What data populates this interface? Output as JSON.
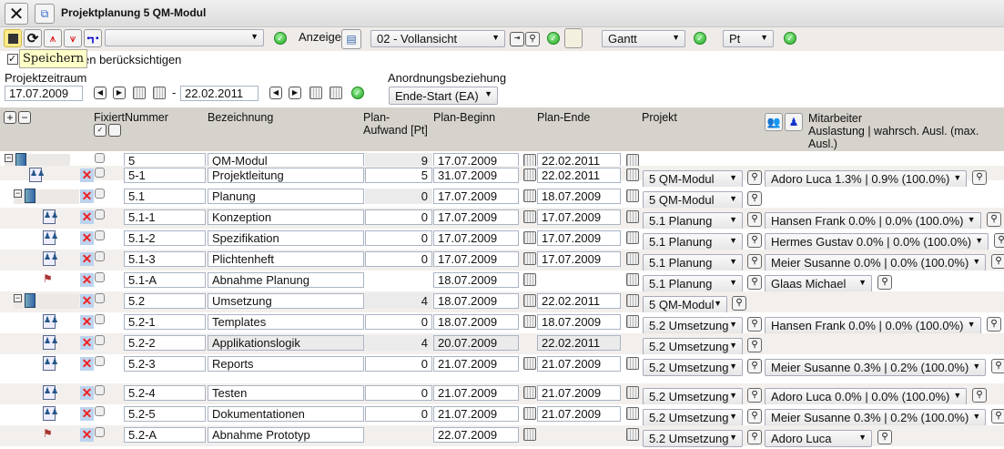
{
  "window": {
    "title": "Projektplanung 5 QM-Modul"
  },
  "toolbar": {
    "filter_select": "",
    "anzeige_label": "Anzeige",
    "view_select": "02 - Vollansicht",
    "chart_select": "Gantt",
    "unit_select": "Pt",
    "tooltip": "Speichern"
  },
  "options": {
    "checkbox_label": "en berücksichtigen",
    "checked": true
  },
  "period": {
    "label": "Projektzeitraum",
    "start": "17.07.2009",
    "separator": "-",
    "end": "22.02.2011"
  },
  "relation": {
    "label": "Anordnungsbeziehung",
    "value": "Ende-Start (EA)"
  },
  "columns": {
    "fixiert": "Fixiert",
    "nummer": "Nummer",
    "bezeichnung": "Bezeichnung",
    "aufwand1": "Plan-",
    "aufwand2": "Aufwand [Pt]",
    "beginn": "Plan-Beginn",
    "ende": "Plan-Ende",
    "projekt": "Projekt",
    "mitarbeiter1": "Mitarbeiter",
    "mitarbeiter2": "Auslastung | wahrsch. Ausl. (max.",
    "mitarbeiter3": "Ausl.)"
  },
  "rows": [
    {
      "type": "project",
      "level": 0,
      "nummer": "5",
      "bez": "QM-Modul",
      "aufwand": "9",
      "beginn": "17.07.2009",
      "ende": "22.02.2011",
      "projekt": "",
      "mitarbeiter": ""
    },
    {
      "type": "task",
      "level": 1,
      "nummer": "5-1",
      "bez": "Projektleitung",
      "aufwand": "5",
      "beginn": "31.07.2009",
      "ende": "22.02.2011",
      "projekt": "5 QM-Modul",
      "mitarbeiter": "Adoro Luca 1.3% | 0.9% (100.0%)"
    },
    {
      "type": "summary",
      "level": 1,
      "nummer": "5.1",
      "bez": "Planung",
      "aufwand": "0",
      "beginn": "17.07.2009",
      "ende": "18.07.2009",
      "projekt": "5 QM-Modul",
      "mitarbeiter": ""
    },
    {
      "type": "task",
      "level": 2,
      "nummer": "5.1-1",
      "bez": "Konzeption",
      "aufwand": "0",
      "beginn": "17.07.2009",
      "ende": "17.07.2009",
      "projekt": "5.1 Planung",
      "mitarbeiter": "Hansen Frank 0.0% | 0.0% (100.0%)"
    },
    {
      "type": "task",
      "level": 2,
      "nummer": "5.1-2",
      "bez": "Spezifikation",
      "aufwand": "0",
      "beginn": "17.07.2009",
      "ende": "17.07.2009",
      "projekt": "5.1 Planung",
      "mitarbeiter": "Hermes Gustav 0.0% | 0.0% (100.0%)"
    },
    {
      "type": "task",
      "level": 2,
      "nummer": "5.1-3",
      "bez": "Plichtenheft",
      "aufwand": "0",
      "beginn": "17.07.2009",
      "ende": "17.07.2009",
      "projekt": "5.1 Planung",
      "mitarbeiter": "Meier Susanne 0.0% | 0.0% (100.0%)"
    },
    {
      "type": "milestone",
      "level": 2,
      "nummer": "5.1-A",
      "bez": "Abnahme Planung",
      "aufwand": "",
      "beginn": "18.07.2009",
      "ende": "",
      "projekt": "5.1 Planung",
      "mitarbeiter": "Glaas Michael"
    },
    {
      "type": "summary",
      "level": 1,
      "nummer": "5.2",
      "bez": "Umsetzung",
      "aufwand": "4",
      "beginn": "18.07.2009",
      "ende": "22.02.2011",
      "projekt": "5 QM-Modul",
      "mitarbeiter": ""
    },
    {
      "type": "task",
      "level": 2,
      "nummer": "5.2-1",
      "bez": "Templates",
      "aufwand": "0",
      "beginn": "18.07.2009",
      "ende": "18.07.2009",
      "projekt": "5.2 Umsetzung",
      "mitarbeiter": "Hansen Frank 0.0% | 0.0% (100.0%)"
    },
    {
      "type": "task",
      "level": 2,
      "locked": true,
      "nummer": "5.2-2",
      "bez": "Applikationslogik",
      "aufwand": "4",
      "beginn": "20.07.2009",
      "ende": "22.02.2011",
      "projekt": "5.2 Umsetzung",
      "mitarbeiter": ""
    },
    {
      "type": "task",
      "level": 2,
      "nummer": "5.2-3",
      "bez": "Reports",
      "aufwand": "0",
      "beginn": "21.07.2009",
      "ende": "21.07.2009",
      "projekt": "5.2 Umsetzung",
      "mitarbeiter": "Meier Susanne 0.3% | 0.2% (100.0%)"
    },
    {
      "type": "task",
      "level": 2,
      "nummer": "5.2-4",
      "bez": "Testen",
      "aufwand": "0",
      "beginn": "21.07.2009",
      "ende": "21.07.2009",
      "projekt": "5.2 Umsetzung",
      "mitarbeiter": "Adoro Luca 0.0% | 0.0% (100.0%)"
    },
    {
      "type": "task",
      "level": 2,
      "nummer": "5.2-5",
      "bez": "Dokumentationen",
      "aufwand": "0",
      "beginn": "21.07.2009",
      "ende": "21.07.2009",
      "projekt": "5.2 Umsetzung",
      "mitarbeiter": "Meier Susanne 0.3% | 0.2% (100.0%)"
    },
    {
      "type": "milestone",
      "level": 2,
      "nummer": "5.2-A",
      "bez": "Abnahme Prototyp",
      "aufwand": "",
      "beginn": "22.07.2009",
      "ende": "",
      "projekt": "5.2 Umsetzung",
      "mitarbeiter": "Adoro Luca"
    }
  ]
}
